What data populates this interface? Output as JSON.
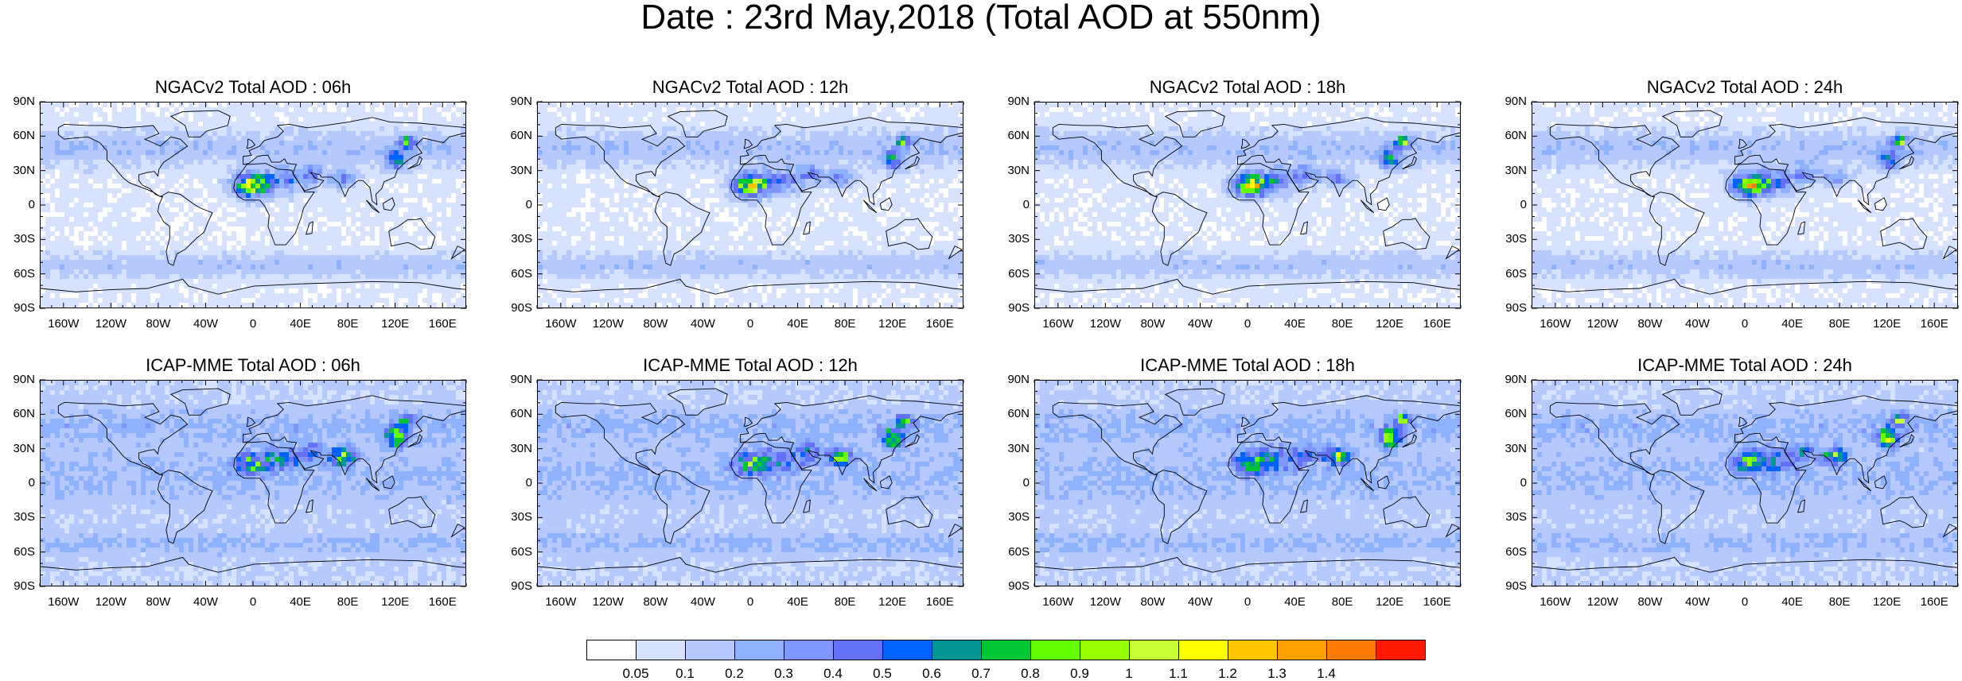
{
  "title": "Date : 23rd May,2018 (Total AOD at 550nm)",
  "panels": [
    {
      "title": "NGACv2 Total AOD : 06h",
      "model": "NGACv2",
      "hour": "06h"
    },
    {
      "title": "NGACv2 Total AOD : 12h",
      "model": "NGACv2",
      "hour": "12h"
    },
    {
      "title": "NGACv2 Total AOD : 18h",
      "model": "NGACv2",
      "hour": "18h"
    },
    {
      "title": "NGACv2 Total AOD : 24h",
      "model": "NGACv2",
      "hour": "24h"
    },
    {
      "title": "ICAP-MME Total AOD : 06h",
      "model": "ICAP-MME",
      "hour": "06h"
    },
    {
      "title": "ICAP-MME Total AOD : 12h",
      "model": "ICAP-MME",
      "hour": "12h"
    },
    {
      "title": "ICAP-MME Total AOD : 18h",
      "model": "ICAP-MME",
      "hour": "18h"
    },
    {
      "title": "ICAP-MME Total AOD : 24h",
      "model": "ICAP-MME",
      "hour": "24h"
    }
  ],
  "lat_ticks": [
    "90N",
    "60N",
    "30N",
    "0",
    "30S",
    "60S",
    "90S"
  ],
  "lon_ticks": [
    "160W",
    "120W",
    "80W",
    "40W",
    "0",
    "40E",
    "80E",
    "120E",
    "160E"
  ],
  "colorbar": {
    "labels": [
      "0.05",
      "0.1",
      "0.2",
      "0.3",
      "0.4",
      "0.5",
      "0.6",
      "0.7",
      "0.8",
      "0.9",
      "1",
      "1.1",
      "1.2",
      "1.3",
      "1.4"
    ],
    "colors": [
      "#ffffff",
      "#d6e2ff",
      "#b5c9ff",
      "#8eb2ff",
      "#7f96ff",
      "#6370f8",
      "#0063ff",
      "#009696",
      "#00c633",
      "#63ff00",
      "#96ff00",
      "#c6ff33",
      "#ffff00",
      "#ffc600",
      "#ffa000",
      "#ff7c00",
      "#ff1900"
    ]
  }
}
